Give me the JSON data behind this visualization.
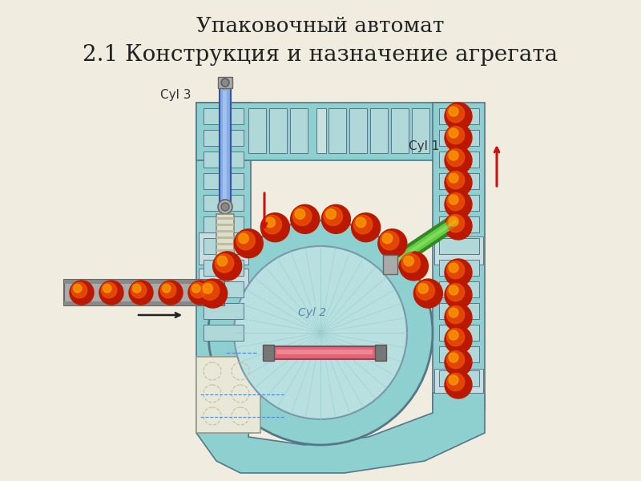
{
  "title_line1": "Упаковочный автомат",
  "title_line2": "2.1 Конструкция и назначение агрегата",
  "bg_color": "#f0ece0",
  "teal_color": "#8ecfcf",
  "teal_inner": "#a8dede",
  "teal_seg": "#9ecfcf",
  "seg_face": "#b0d8d8",
  "gray_color": "#c8c8b8",
  "label_cyl1": "Cyl 1",
  "label_cyl2": "Cyl 2",
  "label_cyl3": "Cyl 3"
}
